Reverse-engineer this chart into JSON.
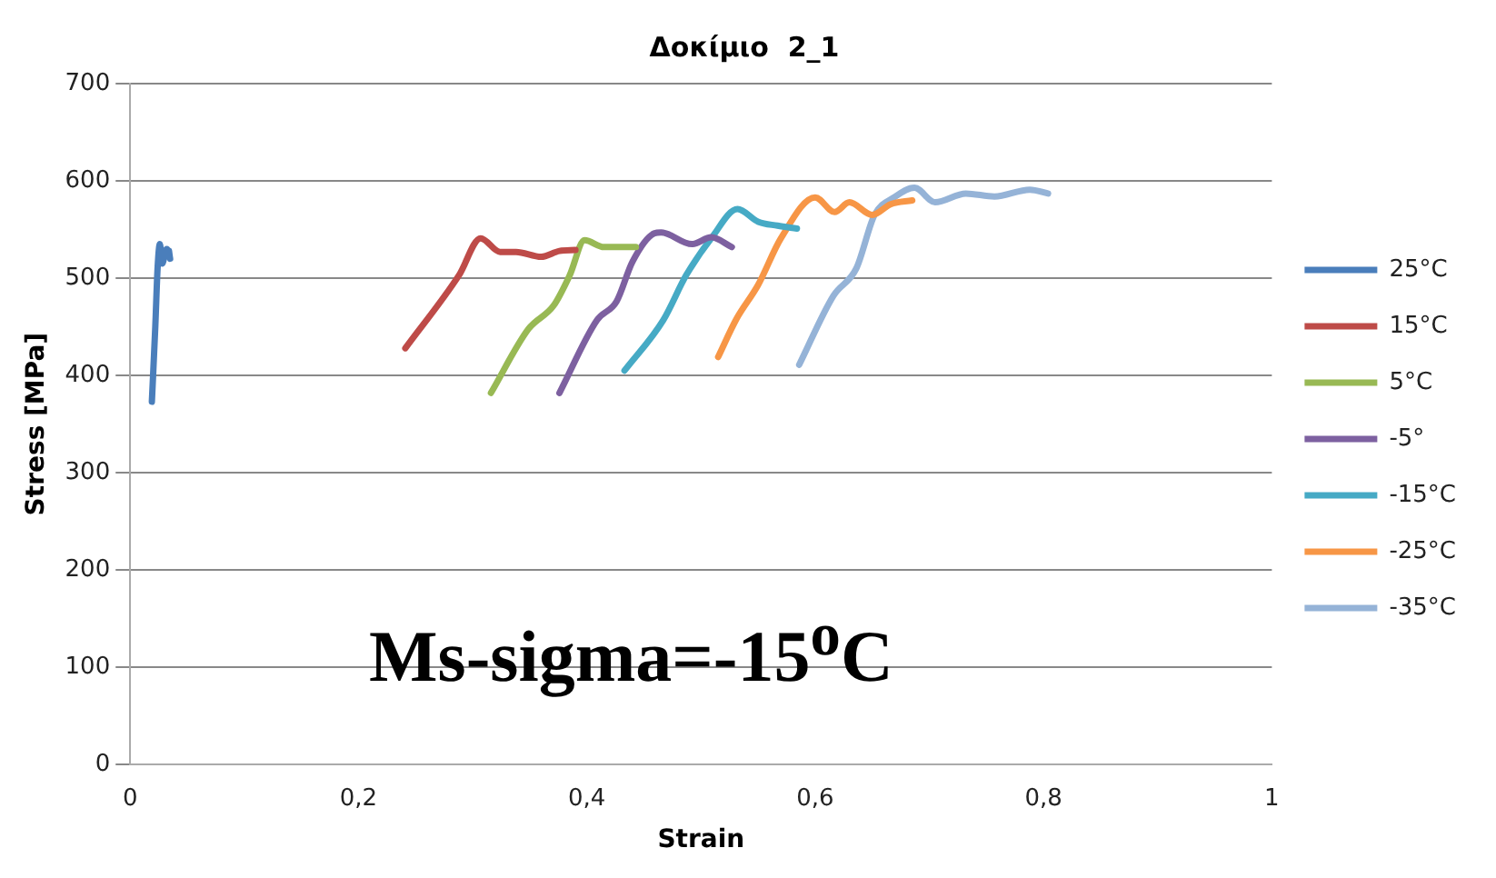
{
  "chart_data": {
    "type": "line",
    "title": "Δοκίμιο  2_1",
    "xlabel": "Strain",
    "ylabel": "Stress [MPa]",
    "annotations": [
      "Ms-sigma=-15$^{o}$C"
    ],
    "xlim": [
      0,
      1
    ],
    "xticks": [
      0,
      {
        "value": 0.2,
        "label": "0,2"
      },
      {
        "value": 0.4,
        "label": "0,4"
      },
      {
        "value": 0.6,
        "label": "0,6"
      },
      {
        "value": 0.8,
        "label": "0,8"
      },
      1
    ],
    "ylim": [
      0,
      700
    ],
    "yticks": [
      0,
      100,
      200,
      300,
      400,
      500,
      600,
      700
    ],
    "grid": "y",
    "legend": "right",
    "marker": "none",
    "line_style": "solid",
    "series": [
      {
        "name": "25°C",
        "color": "#4a7ebb",
        "x": [
          0.019,
          0.022,
          0.024,
          0.026,
          0.028,
          0.032,
          0.035,
          0.034
        ],
        "values": [
          373,
          450,
          510,
          535,
          515,
          530,
          520,
          528
        ]
      },
      {
        "name": "15°C",
        "color": "#be4b48",
        "x": [
          0.241,
          0.288,
          0.307,
          0.324,
          0.338,
          0.36,
          0.376,
          0.39
        ],
        "values": [
          428,
          503,
          541,
          527,
          527,
          522,
          528,
          529
        ]
      },
      {
        "name": "5°C",
        "color": "#98b954",
        "x": [
          0.316,
          0.349,
          0.371,
          0.385,
          0.398,
          0.415,
          0.443
        ],
        "values": [
          382,
          448,
          472,
          503,
          539,
          532,
          532
        ]
      },
      {
        "name": "-5°",
        "color": "#7d60a0",
        "x": [
          0.376,
          0.409,
          0.426,
          0.44,
          0.459,
          0.465,
          0.492,
          0.509,
          0.527
        ],
        "values": [
          382,
          457,
          476,
          517,
          546,
          547,
          535,
          542,
          532
        ]
      },
      {
        "name": "-15°C",
        "color": "#46aac5",
        "x": [
          0.433,
          0.467,
          0.487,
          0.509,
          0.532,
          0.55,
          0.567,
          0.584
        ],
        "values": [
          405,
          457,
          503,
          541,
          571,
          558,
          554,
          551
        ]
      },
      {
        "name": "-25°C",
        "color": "#f79646",
        "x": [
          0.515,
          0.531,
          0.55,
          0.57,
          0.6,
          0.617,
          0.63,
          0.65,
          0.666,
          0.685
        ],
        "values": [
          419,
          458,
          493,
          541,
          583,
          568,
          578,
          565,
          576,
          580
        ]
      },
      {
        "name": "-35°C",
        "color": "#95b3d7",
        "x": [
          0.586,
          0.616,
          0.636,
          0.652,
          0.669,
          0.687,
          0.705,
          0.732,
          0.757,
          0.788,
          0.804
        ],
        "values": [
          411,
          482,
          510,
          565,
          583,
          593,
          578,
          587,
          584,
          591,
          587
        ]
      }
    ]
  }
}
